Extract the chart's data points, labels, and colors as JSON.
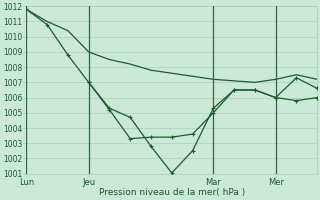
{
  "bg_color": "#cce8d8",
  "grid_color": "#aacfba",
  "line_color": "#1a5c2a",
  "xlabel": "Pression niveau de la mer( hPa )",
  "ylim": [
    1001,
    1012
  ],
  "yticks": [
    1001,
    1002,
    1003,
    1004,
    1005,
    1006,
    1007,
    1008,
    1009,
    1010,
    1011,
    1012
  ],
  "xtick_labels": [
    "Lun",
    "Jeu",
    "Mar",
    "Mer"
  ],
  "xtick_positions": [
    0,
    24,
    72,
    96
  ],
  "vline_positions": [
    0,
    24,
    72,
    96
  ],
  "xlim": [
    0,
    112
  ],
  "series1_x": [
    0,
    8,
    16,
    24,
    32,
    40,
    48,
    56,
    64,
    72,
    80,
    88,
    96,
    104,
    112
  ],
  "series1_y": [
    1011.8,
    1011.0,
    1010.4,
    1009.0,
    1008.5,
    1008.2,
    1007.8,
    1007.6,
    1007.4,
    1007.2,
    1007.1,
    1007.0,
    1007.2,
    1007.5,
    1007.2
  ],
  "series2_x": [
    0,
    8,
    16,
    24,
    32,
    40,
    48,
    56,
    64,
    72,
    80,
    88,
    96,
    104,
    112
  ],
  "series2_y": [
    1011.8,
    1010.8,
    1008.8,
    1007.0,
    1005.3,
    1004.7,
    1002.8,
    1001.05,
    1002.5,
    1005.3,
    1006.5,
    1006.5,
    1006.0,
    1005.8,
    1006.0
  ],
  "series3_x": [
    24,
    32,
    40,
    48,
    56,
    64,
    72,
    80,
    88,
    96,
    104,
    112
  ],
  "series3_y": [
    1007.0,
    1005.2,
    1003.3,
    1003.4,
    1003.4,
    1003.6,
    1005.0,
    1006.5,
    1006.5,
    1006.0,
    1007.3,
    1006.6
  ]
}
